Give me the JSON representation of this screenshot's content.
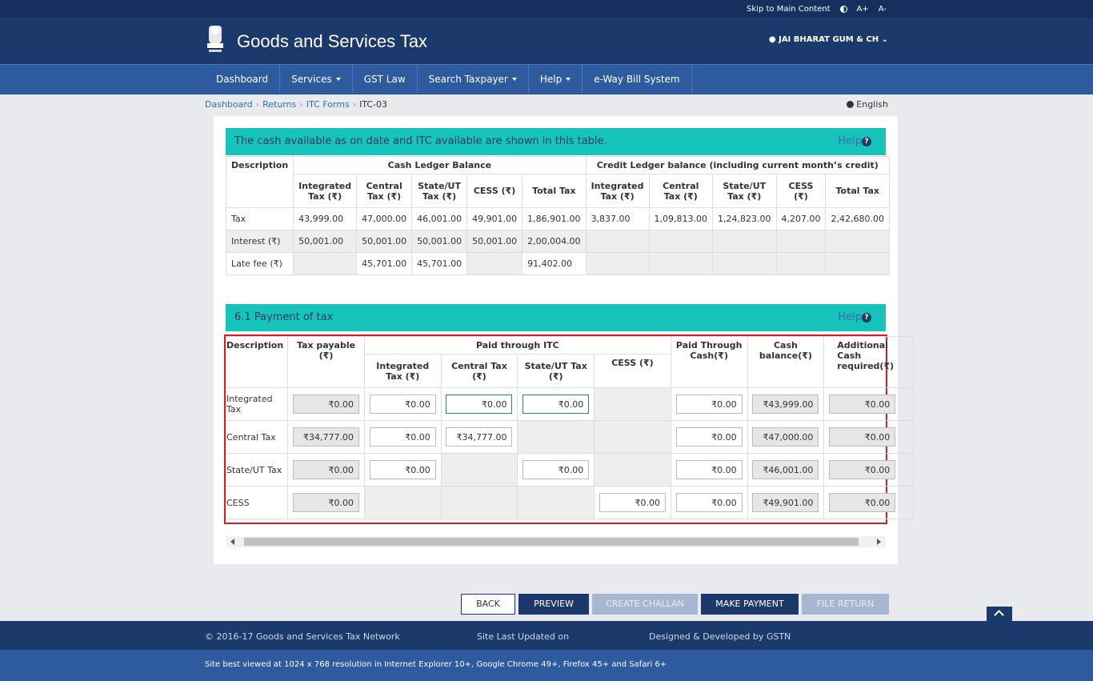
{
  "topbar": {
    "skip": "Skip to Main Content",
    "font_up": "A+",
    "font_down": "A-"
  },
  "header": {
    "title": "Goods and Services Tax",
    "user": "JAI BHARAT GUM & CH"
  },
  "nav": [
    {
      "label": "Dashboard"
    },
    {
      "label": "Services"
    },
    {
      "label": "GST Law"
    },
    {
      "label": "Search Taxpayer"
    },
    {
      "label": "Help"
    },
    {
      "label": "e-Way Bill System"
    }
  ],
  "breadcrumb": [
    "Dashboard",
    "Returns",
    "ITC Forms",
    "ITC-03"
  ],
  "language": "English",
  "section1": {
    "title": "The cash available as on date and ITC available are shown in this table.",
    "help": "Help",
    "headers": {
      "description": "Description",
      "cash_group": "Cash Ledger Balance",
      "credit_group": "Credit Ledger balance (including current month’s credit)",
      "cols": [
        "Integrated Tax (₹)",
        "Central Tax (₹)",
        "State/UT Tax (₹)",
        "CESS (₹)",
        "Total Tax",
        "Integrated Tax (₹)",
        "Central Tax (₹)",
        "State/UT Tax (₹)",
        "CESS (₹)",
        "Total Tax"
      ]
    },
    "rows": [
      {
        "label": "Tax",
        "values": [
          "43,999.00",
          "47,000.00",
          "46,001.00",
          "49,901.00",
          "1,86,901.00",
          "3,837.00",
          "1,09,813.00",
          "1,24,823.00",
          "4,207.00",
          "2,42,680.00"
        ]
      },
      {
        "label": "Interest (₹)",
        "values": [
          "50,001.00",
          "50,001.00",
          "50,001.00",
          "50,001.00",
          "2,00,004.00",
          "",
          "",
          "",
          "",
          ""
        ]
      },
      {
        "label": "Late fee (₹)",
        "values": [
          "",
          "45,701.00",
          "45,701.00",
          "",
          "91,402.00",
          "",
          "",
          "",
          "",
          ""
        ]
      }
    ]
  },
  "section2": {
    "title": "6.1 Payment of tax",
    "help": "Help",
    "headers": {
      "description": "Description",
      "tax_payable": "Tax payable (₹)",
      "paid_itc": "Paid through ITC",
      "itc_cols": [
        "Integrated Tax (₹)",
        "Central Tax (₹)",
        "State/UT Tax (₹)",
        "CESS (₹)"
      ],
      "paid_cash": "Paid Through Cash(₹)",
      "cash_balance": "Cash balance(₹)",
      "additional_cash": "Additional Cash required(₹)"
    },
    "rows": [
      {
        "label": "Integrated Tax",
        "payable": "₹0.00",
        "itc": [
          "₹0.00",
          "₹0.00",
          "₹0.00",
          null
        ],
        "cash": "₹0.00",
        "balance": "₹43,999.00",
        "additional": "₹0.00"
      },
      {
        "label": "Central Tax",
        "payable": "₹34,777.00",
        "itc": [
          "₹0.00",
          "₹34,777.00",
          null,
          null
        ],
        "cash": "₹0.00",
        "balance": "₹47,000.00",
        "additional": "₹0.00"
      },
      {
        "label": "State/UT Tax",
        "payable": "₹0.00",
        "itc": [
          "₹0.00",
          null,
          "₹0.00",
          null
        ],
        "cash": "₹0.00",
        "balance": "₹46,001.00",
        "additional": "₹0.00"
      },
      {
        "label": "CESS",
        "payable": "₹0.00",
        "itc": [
          null,
          null,
          null,
          "₹0.00"
        ],
        "cash": "₹0.00",
        "balance": "₹49,901.00",
        "additional": "₹0.00"
      }
    ]
  },
  "buttons": {
    "back": "BACK",
    "preview": "PREVIEW",
    "create_challan": "CREATE CHALLAN",
    "make_payment": "MAKE PAYMENT",
    "file_return": "FILE RETURN"
  },
  "footer": {
    "copyright": "© 2016-17 Goods and Services Tax Network",
    "updated": "Site Last Updated on",
    "designed": "Designed & Developed by GSTN",
    "browser": "Site best viewed at 1024 x 768 resolution in Internet Explorer 10+, Google Chrome 49+, Firefox 45+ and Safari 6+"
  }
}
